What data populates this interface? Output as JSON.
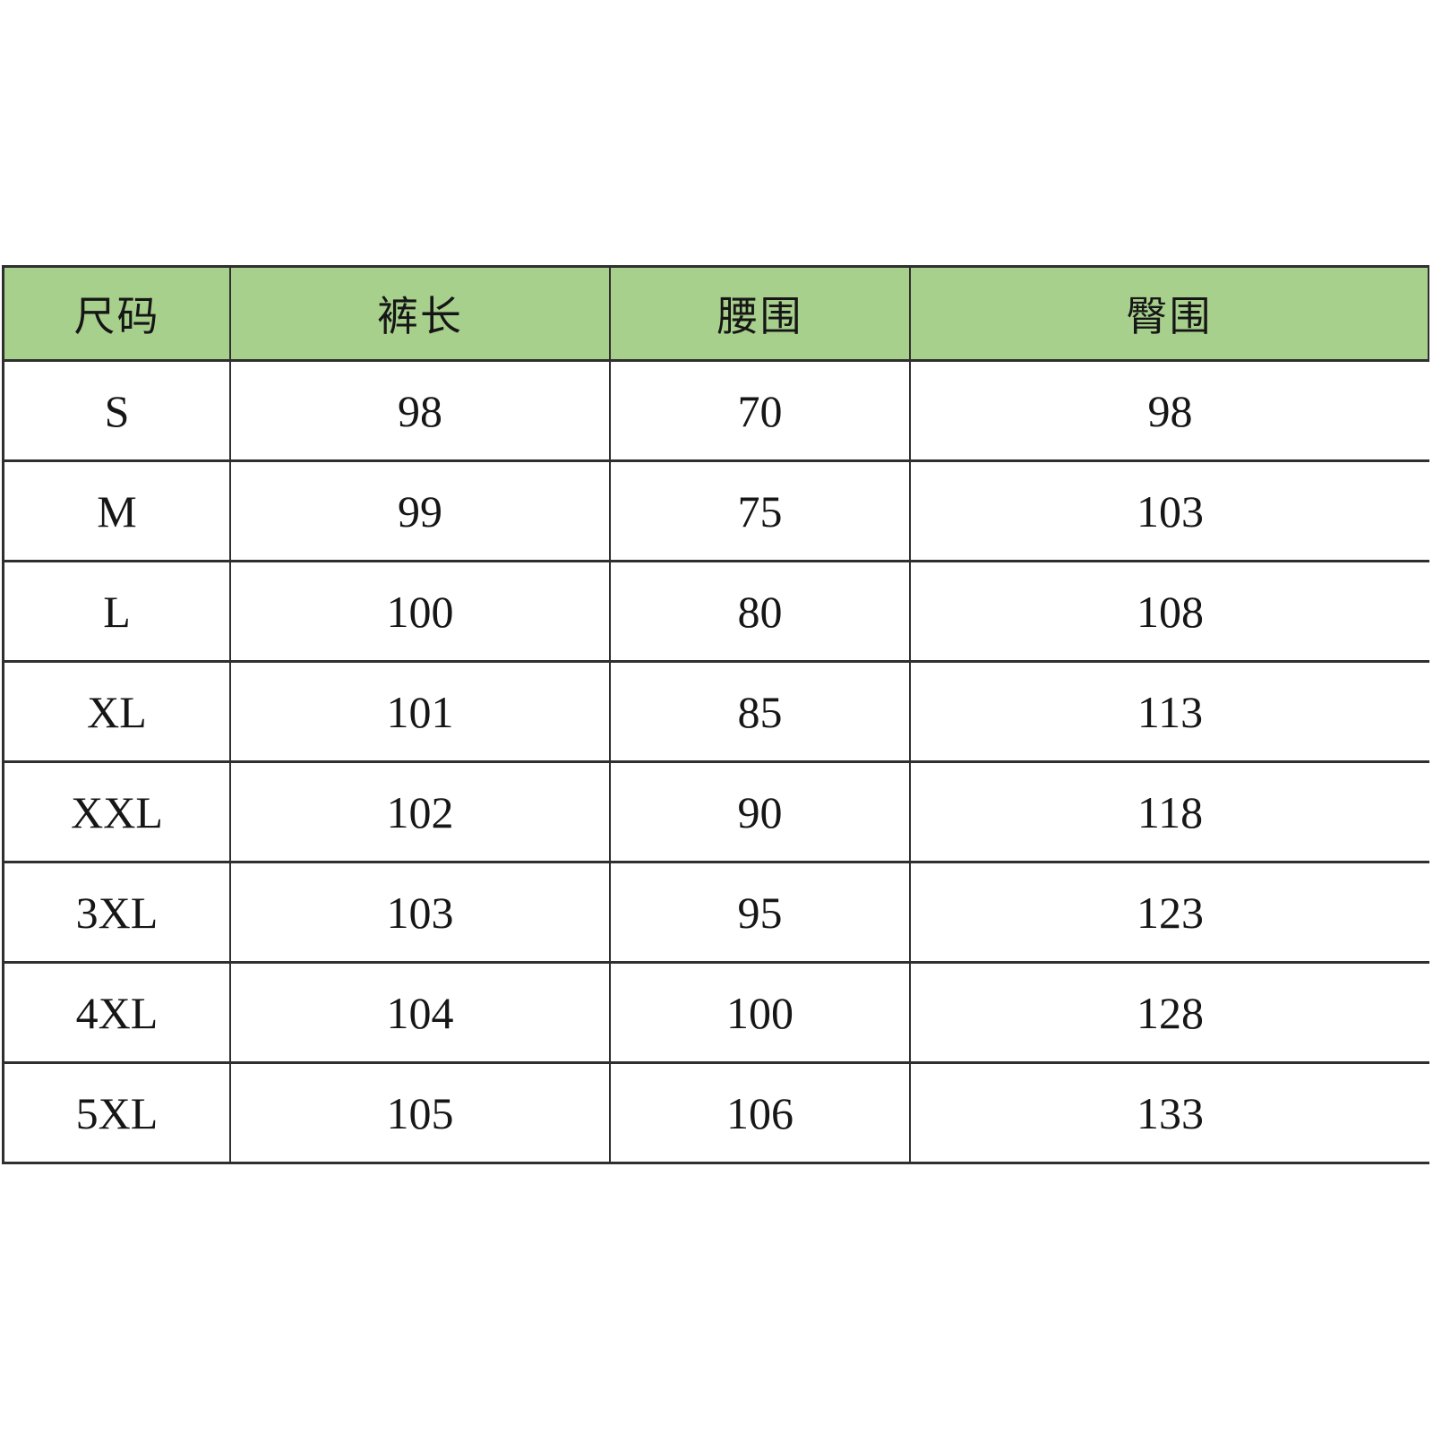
{
  "theme": {
    "page_bg": "#ffffff",
    "header_bg": "#a8d08d",
    "border_color": "#2f2f2f",
    "text_color": "#161616"
  },
  "chart_data": {
    "type": "table",
    "title": "",
    "columns": [
      "尺码",
      "裤长",
      "腰围",
      "臀围"
    ],
    "rows": [
      [
        "S",
        "98",
        "70",
        "98"
      ],
      [
        "M",
        "99",
        "75",
        "103"
      ],
      [
        "L",
        "100",
        "80",
        "108"
      ],
      [
        "XL",
        "101",
        "85",
        "113"
      ],
      [
        "XXL",
        "102",
        "90",
        "118"
      ],
      [
        "3XL",
        "103",
        "95",
        "123"
      ],
      [
        "4XL",
        "104",
        "100",
        "128"
      ],
      [
        "5XL",
        "105",
        "106",
        "133"
      ]
    ]
  }
}
